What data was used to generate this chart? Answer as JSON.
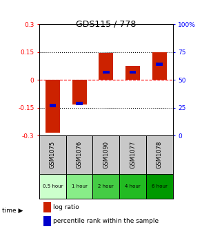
{
  "title": "GDS115 / 778",
  "samples": [
    "GSM1075",
    "GSM1076",
    "GSM1090",
    "GSM1077",
    "GSM1078"
  ],
  "time_labels": [
    "0.5 hour",
    "1 hour",
    "2 hour",
    "4 hour",
    "6 hour"
  ],
  "log_ratios": [
    -0.285,
    -0.13,
    0.145,
    0.075,
    0.15
  ],
  "percentile_ranks": [
    0.27,
    0.29,
    0.57,
    0.57,
    0.64
  ],
  "bar_color": "#cc2200",
  "pct_color": "#0000cc",
  "ylim_left": [
    -0.3,
    0.3
  ],
  "ylim_right": [
    0,
    1.0
  ],
  "yticks_left": [
    -0.3,
    -0.15,
    0,
    0.15,
    0.3
  ],
  "ytick_labels_left": [
    "-0.3",
    "-0.15",
    "0",
    "0.15",
    "0.3"
  ],
  "yticks_right": [
    0.0,
    0.25,
    0.5,
    0.75,
    1.0
  ],
  "ytick_labels_right": [
    "0",
    "25",
    "50",
    "75",
    "100%"
  ],
  "hline_y": [
    0.15,
    0,
    -0.15
  ],
  "hline_styles": [
    "dotted",
    "dashed",
    "dotted"
  ],
  "hline_colors": [
    "black",
    "red",
    "black"
  ],
  "bar_width": 0.55,
  "sample_bg_color": "#c8c8c8",
  "time_row_colors": [
    "#ccffcc",
    "#88ee88",
    "#44cc44",
    "#22bb22",
    "#009900"
  ],
  "legend_red_label": "log ratio",
  "legend_blue_label": "percentile rank within the sample"
}
